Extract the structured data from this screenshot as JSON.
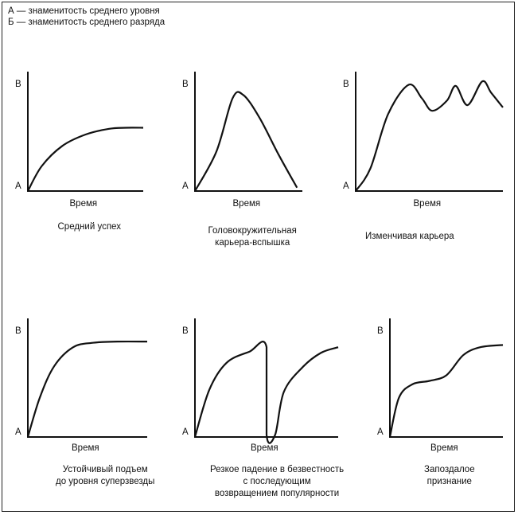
{
  "legend": {
    "line_a": "А — знаменитость среднего уровня",
    "line_b": "Б — знаменитость среднего разряда"
  },
  "panels": [
    {
      "axis_top": "В",
      "axis_bottom": "А",
      "xlabel": "Время",
      "caption": [
        "Средний успех"
      ],
      "curve": [
        [
          0,
          0
        ],
        [
          0.12,
          0.22
        ],
        [
          0.3,
          0.4
        ],
        [
          0.5,
          0.5
        ],
        [
          0.7,
          0.55
        ],
        [
          0.85,
          0.56
        ],
        [
          1,
          0.56
        ]
      ]
    },
    {
      "axis_top": "В",
      "axis_bottom": "А",
      "xlabel": "Время",
      "caption": [
        "Головокружительная",
        "карьера-вспышка"
      ],
      "curve": [
        [
          0,
          0
        ],
        [
          0.2,
          0.35
        ],
        [
          0.35,
          0.82
        ],
        [
          0.45,
          0.85
        ],
        [
          0.6,
          0.65
        ],
        [
          0.78,
          0.32
        ],
        [
          0.95,
          0.03
        ]
      ]
    },
    {
      "axis_top": "В",
      "axis_bottom": "А",
      "xlabel": "Время",
      "caption": [
        "Изменчивая карьера"
      ],
      "curve": [
        [
          0,
          0
        ],
        [
          0.1,
          0.2
        ],
        [
          0.22,
          0.68
        ],
        [
          0.36,
          0.94
        ],
        [
          0.45,
          0.82
        ],
        [
          0.52,
          0.71
        ],
        [
          0.62,
          0.8
        ],
        [
          0.68,
          0.93
        ],
        [
          0.76,
          0.76
        ],
        [
          0.86,
          0.97
        ],
        [
          0.92,
          0.87
        ],
        [
          1,
          0.74
        ]
      ]
    },
    {
      "axis_top": "В",
      "axis_bottom": "А",
      "xlabel": "Время",
      "caption": [
        "Устойчивый подъем",
        "до уровня суперзвезды"
      ],
      "curve": [
        [
          0,
          0
        ],
        [
          0.1,
          0.35
        ],
        [
          0.22,
          0.63
        ],
        [
          0.38,
          0.8
        ],
        [
          0.55,
          0.84
        ],
        [
          0.75,
          0.85
        ],
        [
          1,
          0.85
        ]
      ]
    },
    {
      "axis_top": "В",
      "axis_bottom": "А",
      "xlabel": "Время",
      "caption": [
        "Резкое падение в безвестность",
        "с последующим",
        "возвращением популярности"
      ],
      "curve": [
        [
          0,
          0
        ],
        [
          0.1,
          0.42
        ],
        [
          0.22,
          0.66
        ],
        [
          0.38,
          0.76
        ],
        [
          0.5,
          0.8
        ],
        [
          0.5,
          0.02
        ],
        [
          0.56,
          0.02
        ],
        [
          0.62,
          0.4
        ],
        [
          0.75,
          0.62
        ],
        [
          0.88,
          0.75
        ],
        [
          1,
          0.8
        ]
      ]
    },
    {
      "axis_top": "В",
      "axis_bottom": "А",
      "xlabel": "Время",
      "caption": [
        "Запоздалое",
        "признание"
      ],
      "curve": [
        [
          0,
          0
        ],
        [
          0.08,
          0.35
        ],
        [
          0.2,
          0.47
        ],
        [
          0.35,
          0.5
        ],
        [
          0.5,
          0.55
        ],
        [
          0.65,
          0.73
        ],
        [
          0.8,
          0.8
        ],
        [
          1,
          0.82
        ]
      ]
    }
  ]
}
